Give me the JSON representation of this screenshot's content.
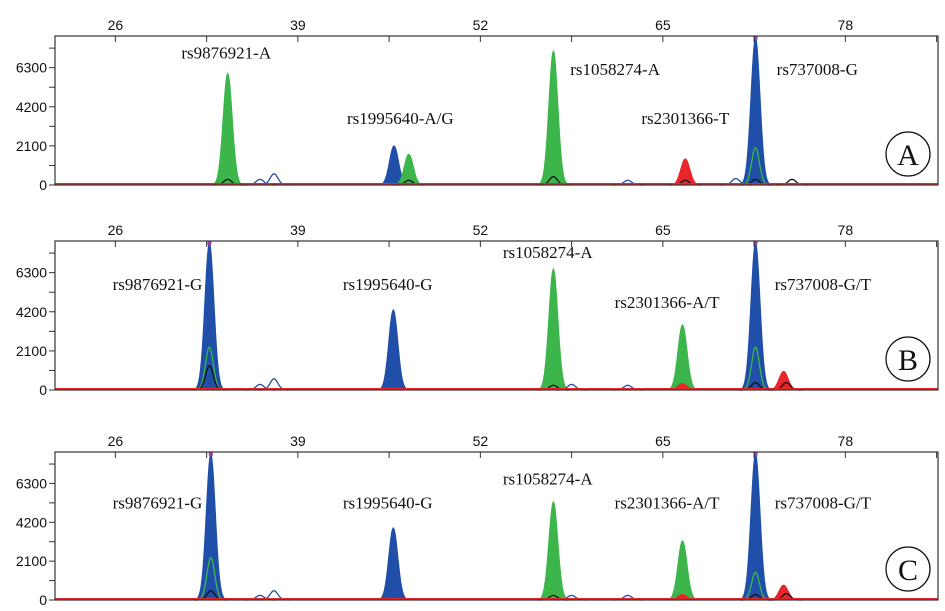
{
  "chart_data": [
    {
      "type": "line",
      "panel": "A",
      "xlim": [
        21.7,
        84.6
      ],
      "ylim": [
        0,
        8000
      ],
      "xticks": [
        26,
        39,
        52,
        65,
        78
      ],
      "yticks": [
        0,
        2100,
        4200,
        6300
      ],
      "peaks": [
        {
          "x": 34.0,
          "y": 6000,
          "color": "green",
          "fill": true
        },
        {
          "x": 34.0,
          "y": 300,
          "color": "black",
          "fill": false
        },
        {
          "x": 36.3,
          "y": 300,
          "color": "blue",
          "fill": false
        },
        {
          "x": 37.3,
          "y": 600,
          "color": "blue",
          "fill": false
        },
        {
          "x": 45.85,
          "y": 2100,
          "color": "blue",
          "fill": true
        },
        {
          "x": 46.9,
          "y": 1650,
          "color": "green",
          "fill": true
        },
        {
          "x": 46.9,
          "y": 250,
          "color": "black",
          "fill": false
        },
        {
          "x": 57.2,
          "y": 7200,
          "color": "green",
          "fill": true
        },
        {
          "x": 57.2,
          "y": 450,
          "color": "black",
          "fill": false
        },
        {
          "x": 62.5,
          "y": 250,
          "color": "blue",
          "fill": false
        },
        {
          "x": 66.6,
          "y": 1400,
          "color": "red",
          "fill": true
        },
        {
          "x": 66.6,
          "y": 250,
          "color": "black",
          "fill": false
        },
        {
          "x": 71.6,
          "y": 7900,
          "color": "blue",
          "fill": true
        },
        {
          "x": 71.6,
          "y": 2000,
          "color": "green",
          "fill": false
        },
        {
          "x": 71.6,
          "y": 300,
          "color": "black",
          "fill": false
        },
        {
          "x": 70.2,
          "y": 350,
          "color": "blue",
          "fill": false
        },
        {
          "x": 74.2,
          "y": 300,
          "color": "black",
          "fill": false
        }
      ],
      "labels": [
        {
          "text": "rs9876921-A",
          "x": 33.9,
          "y": 6800
        },
        {
          "text": "rs1995640-A/G",
          "x": 46.3,
          "y": 3275
        },
        {
          "text": "rs1058274-A",
          "x": 61.6,
          "y": 5900
        },
        {
          "text": "rs2301366-T",
          "x": 66.6,
          "y": 3275
        },
        {
          "text": "rs737008-G",
          "x": 76.0,
          "y": 5900
        }
      ]
    },
    {
      "type": "line",
      "panel": "B",
      "xlim": [
        21.7,
        84.6
      ],
      "ylim": [
        0,
        8000
      ],
      "xticks": [
        26,
        39,
        52,
        65,
        78
      ],
      "yticks": [
        0,
        2100,
        4200,
        6300
      ],
      "peaks": [
        {
          "x": 32.7,
          "y": 7900,
          "color": "blue",
          "fill": true
        },
        {
          "x": 32.7,
          "y": 2300,
          "color": "green",
          "fill": false
        },
        {
          "x": 32.7,
          "y": 1300,
          "color": "black",
          "fill": false
        },
        {
          "x": 36.3,
          "y": 300,
          "color": "blue",
          "fill": false
        },
        {
          "x": 37.3,
          "y": 600,
          "color": "blue",
          "fill": false
        },
        {
          "x": 45.8,
          "y": 4300,
          "color": "blue",
          "fill": true
        },
        {
          "x": 57.2,
          "y": 6500,
          "color": "green",
          "fill": true
        },
        {
          "x": 57.2,
          "y": 250,
          "color": "black",
          "fill": false
        },
        {
          "x": 58.5,
          "y": 300,
          "color": "blue",
          "fill": false
        },
        {
          "x": 62.5,
          "y": 250,
          "color": "blue",
          "fill": false
        },
        {
          "x": 66.4,
          "y": 3500,
          "color": "green",
          "fill": true
        },
        {
          "x": 66.4,
          "y": 350,
          "color": "red",
          "fill": true
        },
        {
          "x": 71.6,
          "y": 7900,
          "color": "blue",
          "fill": true
        },
        {
          "x": 71.6,
          "y": 2300,
          "color": "green",
          "fill": false
        },
        {
          "x": 71.6,
          "y": 400,
          "color": "black",
          "fill": false
        },
        {
          "x": 73.6,
          "y": 1000,
          "color": "red",
          "fill": true
        },
        {
          "x": 73.8,
          "y": 400,
          "color": "black",
          "fill": false
        }
      ],
      "labels": [
        {
          "text": "rs9876921-G",
          "x": 29.0,
          "y": 5370
        },
        {
          "text": "rs1995640-G",
          "x": 45.4,
          "y": 5370
        },
        {
          "text": "rs1058274-A",
          "x": 56.8,
          "y": 7090
        },
        {
          "text": "rs2301366-A/T",
          "x": 65.3,
          "y": 4400
        },
        {
          "text": "rs737008-G/T",
          "x": 76.4,
          "y": 5370
        }
      ]
    },
    {
      "type": "line",
      "panel": "C",
      "xlim": [
        21.7,
        84.6
      ],
      "ylim": [
        0,
        8000
      ],
      "xticks": [
        26,
        39,
        52,
        65,
        78
      ],
      "yticks": [
        0,
        2100,
        4200,
        6300
      ],
      "peaks": [
        {
          "x": 32.8,
          "y": 7900,
          "color": "blue",
          "fill": true
        },
        {
          "x": 32.8,
          "y": 2300,
          "color": "green",
          "fill": false
        },
        {
          "x": 32.8,
          "y": 500,
          "color": "black",
          "fill": false
        },
        {
          "x": 36.3,
          "y": 250,
          "color": "blue",
          "fill": false
        },
        {
          "x": 37.3,
          "y": 500,
          "color": "blue",
          "fill": false
        },
        {
          "x": 45.8,
          "y": 3900,
          "color": "blue",
          "fill": true
        },
        {
          "x": 57.2,
          "y": 5300,
          "color": "green",
          "fill": true
        },
        {
          "x": 57.2,
          "y": 250,
          "color": "black",
          "fill": false
        },
        {
          "x": 58.5,
          "y": 250,
          "color": "blue",
          "fill": false
        },
        {
          "x": 62.5,
          "y": 250,
          "color": "blue",
          "fill": false
        },
        {
          "x": 66.4,
          "y": 3200,
          "color": "green",
          "fill": true
        },
        {
          "x": 66.4,
          "y": 300,
          "color": "red",
          "fill": true
        },
        {
          "x": 71.6,
          "y": 7900,
          "color": "blue",
          "fill": true
        },
        {
          "x": 71.6,
          "y": 1500,
          "color": "green",
          "fill": false
        },
        {
          "x": 71.6,
          "y": 300,
          "color": "black",
          "fill": false
        },
        {
          "x": 73.6,
          "y": 800,
          "color": "red",
          "fill": true
        },
        {
          "x": 73.8,
          "y": 350,
          "color": "black",
          "fill": false
        }
      ],
      "labels": [
        {
          "text": "rs9876921-G",
          "x": 29.0,
          "y": 4940
        },
        {
          "text": "rs1995640-G",
          "x": 45.4,
          "y": 4940
        },
        {
          "text": "rs1058274-A",
          "x": 56.8,
          "y": 6230
        },
        {
          "text": "rs2301366-A/T",
          "x": 65.3,
          "y": 4940
        },
        {
          "text": "rs737008-G/T",
          "x": 76.4,
          "y": 4940
        }
      ]
    }
  ],
  "colors": {
    "blue": "#1f4fa8",
    "green": "#3cb54a",
    "red": "#e8252a",
    "black": "#111111",
    "saturation": "#a040a0"
  }
}
